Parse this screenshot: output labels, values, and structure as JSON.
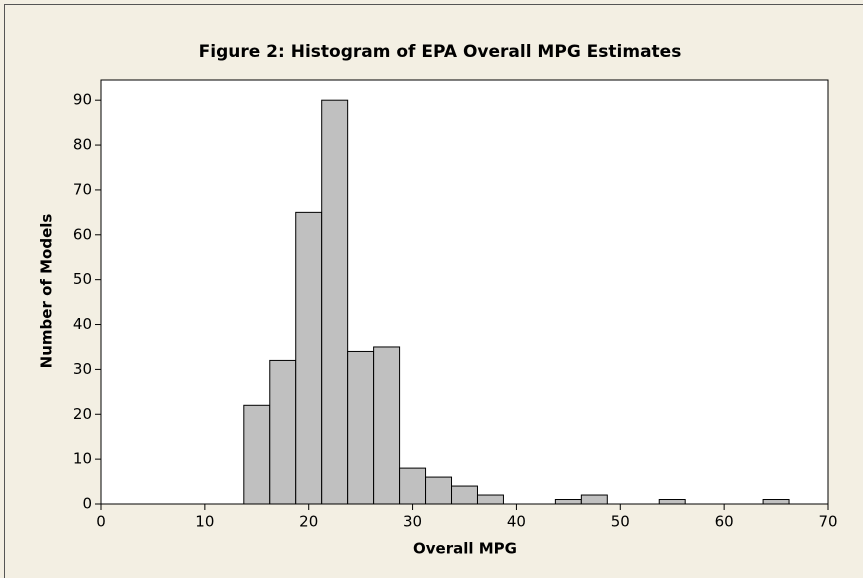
{
  "chart_data": {
    "type": "histogram",
    "title": "Figure 2: Histogram of EPA Overall MPG Estimates",
    "x_label": "Overall MPG",
    "y_label": "Number of Models",
    "bins": [
      8.75,
      11.25,
      13.75,
      16.25,
      18.75,
      21.25,
      23.75,
      26.25,
      28.75,
      31.25,
      33.75,
      36.25,
      38.75,
      41.25,
      43.75,
      46.25,
      48.75,
      51.25,
      53.75,
      56.25,
      58.75,
      61.25,
      63.75,
      66.25
    ],
    "values": [
      0,
      0,
      22,
      32,
      65,
      90,
      34,
      35,
      8,
      6,
      4,
      2,
      0,
      0,
      1,
      2,
      0,
      0,
      1,
      0,
      0,
      0,
      1
    ],
    "color": "#c0c0c0",
    "xlim": [
      0,
      70
    ],
    "xticks": [
      0,
      10,
      20,
      30,
      40,
      50,
      60,
      70
    ],
    "ylim": [
      0,
      94.5
    ],
    "yticks": [
      0,
      10,
      20,
      30,
      40,
      50,
      60,
      70,
      80,
      90
    ]
  }
}
